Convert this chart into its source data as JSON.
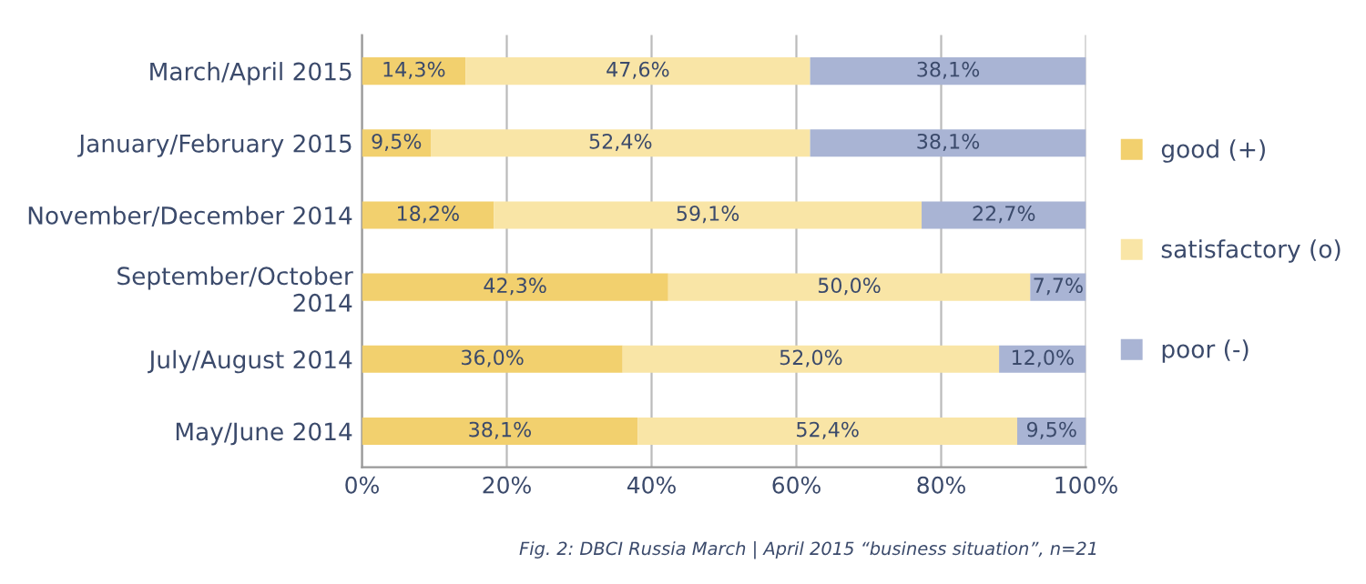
{
  "chart_data": {
    "type": "bar",
    "orientation": "horizontal",
    "stacked": true,
    "categories": [
      "March/April 2015",
      "January/February 2015",
      "November/December 2014",
      "September/October\n2014",
      "July/August 2014",
      "May/June 2014"
    ],
    "series": [
      {
        "name": "good (+)",
        "color": "#f2d06e",
        "values": [
          14.3,
          9.5,
          18.2,
          42.3,
          36.0,
          38.1
        ],
        "value_labels": [
          "14,3%",
          "9,5%",
          "18,2%",
          "42,3%",
          "36,0%",
          "38,1%"
        ]
      },
      {
        "name": "satisfactory (o)",
        "color": "#f9e5a6",
        "values": [
          47.6,
          52.4,
          59.1,
          50.0,
          52.0,
          52.4
        ],
        "value_labels": [
          "47,6%",
          "52,4%",
          "59,1%",
          "50,0%",
          "52,0%",
          "52,4%"
        ]
      },
      {
        "name": "poor (-)",
        "color": "#a9b4d4",
        "values": [
          38.1,
          38.1,
          22.7,
          7.7,
          12.0,
          9.5
        ],
        "value_labels": [
          "38,1%",
          "38,1%",
          "22,7%",
          "7,7%",
          "12,0%",
          "9,5%"
        ]
      }
    ],
    "xlim": [
      0,
      100
    ],
    "xticks": [
      {
        "value": 0,
        "label": "0%"
      },
      {
        "value": 20,
        "label": "20%"
      },
      {
        "value": 40,
        "label": "40%"
      },
      {
        "value": 60,
        "label": "60%"
      },
      {
        "value": 80,
        "label": "80%"
      },
      {
        "value": 100,
        "label": "100%"
      }
    ],
    "grid": "x",
    "legend": "right",
    "annotations": [
      "Fig. 2: DBCI Russia March | April 2015 “business situation”, n=21"
    ]
  }
}
